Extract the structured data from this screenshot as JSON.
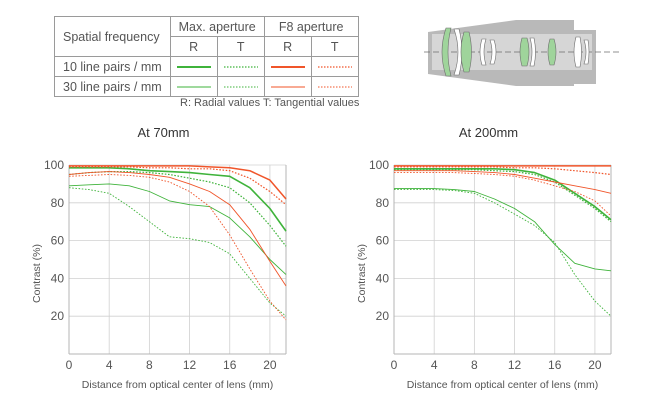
{
  "legend": {
    "spatial_frequency_label": "Spatial frequency",
    "max_aperture_label": "Max. aperture",
    "f8_aperture_label": "F8 aperture",
    "radial_short": "R",
    "tangential_short": "T",
    "row_10": "10 line pairs / mm",
    "row_30": "30 line pairs / mm",
    "note": "R: Radial values  T: Tangential values"
  },
  "colors": {
    "max_aperture": "#3fb33b",
    "f8_aperture": "#f0552a",
    "axis": "#b5b5b5",
    "grid": "#d0d0d0",
    "lens_body": "#b9b9b9",
    "lens_element": "#9fd49b"
  },
  "chart_data": [
    {
      "type": "line",
      "title": "At 70mm",
      "xlabel": "Distance from optical center of lens (mm)",
      "ylabel": "Contrast (%)",
      "xlim": [
        0,
        21.6
      ],
      "ylim": [
        0,
        100
      ],
      "xticks": [
        0,
        4,
        8,
        12,
        16,
        20
      ],
      "yticks": [
        20,
        40,
        60,
        80,
        100
      ],
      "grid": true,
      "x": [
        0,
        2,
        4,
        6,
        8,
        10,
        12,
        14,
        16,
        18,
        20,
        21.6
      ],
      "series": [
        {
          "name": "10 line pairs / mm Max. aperture R",
          "color": "#3fb33b",
          "dash": "solid",
          "width": 1.6,
          "values": [
            98.5,
            98.5,
            98.5,
            98,
            97,
            96.5,
            96,
            95,
            94,
            88,
            77,
            65
          ]
        },
        {
          "name": "10 line pairs / mm Max. aperture T",
          "color": "#3fb33b",
          "dash": "dotted",
          "width": 1.2,
          "values": [
            95,
            96,
            96.5,
            96.5,
            96,
            95,
            93,
            91,
            88,
            80,
            68,
            57
          ]
        },
        {
          "name": "10 line pairs / mm F8 aperture R",
          "color": "#f0552a",
          "dash": "solid",
          "width": 1.5,
          "values": [
            99.5,
            99.5,
            99.5,
            99.5,
            99.5,
            99.5,
            99.5,
            99,
            98.5,
            97,
            92,
            82
          ]
        },
        {
          "name": "10 line pairs / mm F8 aperture T",
          "color": "#f0552a",
          "dash": "dotted",
          "width": 1.2,
          "values": [
            99,
            99,
            99,
            99,
            98.5,
            98.5,
            98,
            98,
            97,
            93,
            86,
            79
          ]
        },
        {
          "name": "30 line pairs / mm Max. aperture R",
          "color": "#3fb33b",
          "dash": "solid",
          "width": 0.9,
          "values": [
            89,
            89.5,
            90,
            89,
            86,
            81,
            79,
            78,
            72,
            62,
            50,
            42
          ]
        },
        {
          "name": "30 line pairs / mm Max. aperture T",
          "color": "#3fb33b",
          "dash": "dotted",
          "width": 0.9,
          "values": [
            88,
            87,
            85,
            78,
            70,
            62,
            61,
            59,
            53,
            40,
            27,
            20
          ]
        },
        {
          "name": "30 line pairs / mm F8 aperture R",
          "color": "#f0552a",
          "dash": "solid",
          "width": 0.9,
          "values": [
            95,
            96,
            96.5,
            96,
            95,
            93.5,
            90,
            86,
            79,
            66,
            49,
            36
          ]
        },
        {
          "name": "30 line pairs / mm F8 aperture T",
          "color": "#f0552a",
          "dash": "dotted",
          "width": 0.9,
          "values": [
            94,
            94.5,
            95,
            94.5,
            93.5,
            91,
            86,
            78,
            63,
            45,
            28,
            18
          ]
        }
      ]
    },
    {
      "type": "line",
      "title": "At 200mm",
      "xlabel": "Distance from optical center of lens (mm)",
      "ylabel": "Contrast (%)",
      "xlim": [
        0,
        21.6
      ],
      "ylim": [
        0,
        100
      ],
      "xticks": [
        0,
        4,
        8,
        12,
        16,
        20
      ],
      "yticks": [
        20,
        40,
        60,
        80,
        100
      ],
      "grid": true,
      "x": [
        0,
        2,
        4,
        6,
        8,
        10,
        12,
        14,
        16,
        18,
        20,
        21.6
      ],
      "series": [
        {
          "name": "10 line pairs / mm Max. aperture R",
          "color": "#3fb33b",
          "dash": "solid",
          "width": 1.6,
          "values": [
            98,
            98,
            98,
            98,
            98,
            98,
            97.5,
            96,
            92,
            85,
            78,
            71
          ]
        },
        {
          "name": "10 line pairs / mm Max. aperture T",
          "color": "#3fb33b",
          "dash": "dotted",
          "width": 1.2,
          "values": [
            97.5,
            97.5,
            97.5,
            97.5,
            97.5,
            97,
            96.5,
            95,
            91,
            84,
            77,
            70
          ]
        },
        {
          "name": "10 line pairs / mm F8 aperture R",
          "color": "#f0552a",
          "dash": "solid",
          "width": 1.5,
          "values": [
            99.5,
            99.5,
            99.5,
            99.5,
            99.5,
            99.5,
            99.5,
            99.5,
            99.5,
            99.5,
            99.5,
            99.5
          ]
        },
        {
          "name": "10 line pairs / mm F8 aperture T",
          "color": "#f0552a",
          "dash": "dotted",
          "width": 1.2,
          "values": [
            99,
            99,
            99,
            99,
            99,
            99,
            98.5,
            98.5,
            98,
            97,
            96,
            95
          ]
        },
        {
          "name": "30 line pairs / mm Max. aperture R",
          "color": "#3fb33b",
          "dash": "solid",
          "width": 0.9,
          "values": [
            87.5,
            87.5,
            87.5,
            87,
            86,
            82,
            77,
            70,
            58,
            48,
            45,
            44
          ]
        },
        {
          "name": "30 line pairs / mm Max. aperture T",
          "color": "#3fb33b",
          "dash": "dotted",
          "width": 0.9,
          "values": [
            87,
            87,
            87,
            86.5,
            85,
            80,
            74,
            68,
            59,
            42,
            28,
            20
          ]
        },
        {
          "name": "30 line pairs / mm F8 aperture R",
          "color": "#f0552a",
          "dash": "solid",
          "width": 0.9,
          "values": [
            97,
            97,
            97,
            97,
            96.5,
            96,
            95,
            93,
            91,
            89,
            87,
            85
          ]
        },
        {
          "name": "30 line pairs / mm F8 aperture T",
          "color": "#f0552a",
          "dash": "dotted",
          "width": 0.9,
          "values": [
            96,
            96,
            96,
            96,
            95.5,
            95,
            94,
            92,
            89,
            86,
            81,
            73
          ]
        }
      ]
    }
  ]
}
